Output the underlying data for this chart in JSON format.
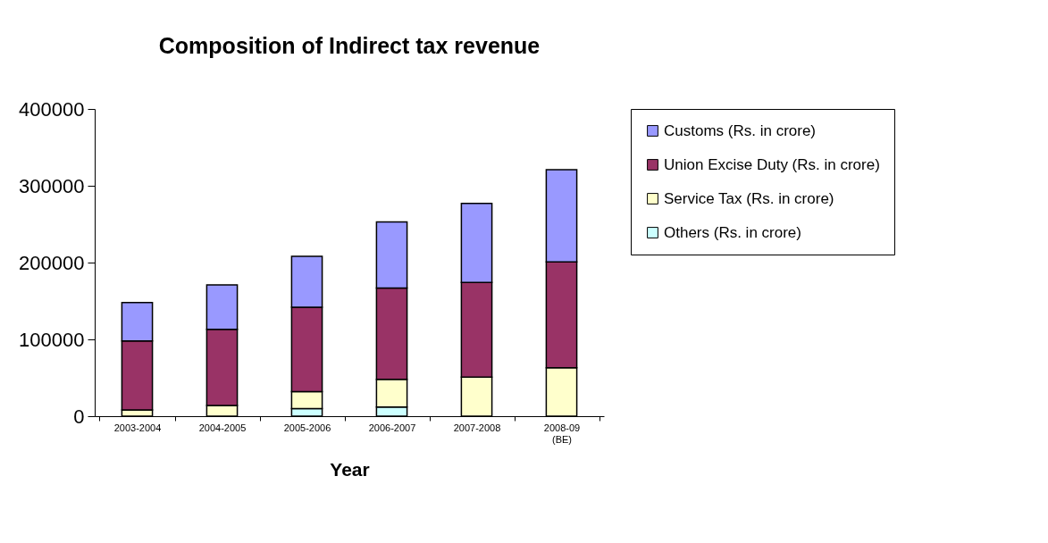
{
  "chart_data": {
    "type": "bar",
    "title": "Composition of Indirect tax revenue",
    "xlabel": "Year",
    "categories": [
      "2003-2004",
      "2004-2005",
      "2005-2006",
      "2006-2007",
      "2007-2008",
      "2008-09 (BE)"
    ],
    "stacked": true,
    "series": [
      {
        "name": "Others (Rs. in crore)",
        "color": "#ccffff",
        "values": [
          null,
          null,
          10000,
          12000,
          null,
          null
        ]
      },
      {
        "name": "Service Tax (Rs. in crore)",
        "color": "#ffffcc",
        "values": [
          8000,
          14000,
          22000,
          36000,
          51000,
          63000
        ]
      },
      {
        "name": "Union Excise Duty (Rs. in crore)",
        "color": "#993366",
        "values": [
          90000,
          99000,
          110000,
          119000,
          123000,
          138000
        ]
      },
      {
        "name": "Customs (Rs. in crore)",
        "color": "#9999ff",
        "values": [
          50000,
          58000,
          66000,
          86000,
          103000,
          120000
        ]
      }
    ],
    "ylim": [
      0,
      400000
    ],
    "yticks": [
      0,
      100000,
      200000,
      300000,
      400000
    ],
    "grid": false,
    "legend": "right"
  }
}
